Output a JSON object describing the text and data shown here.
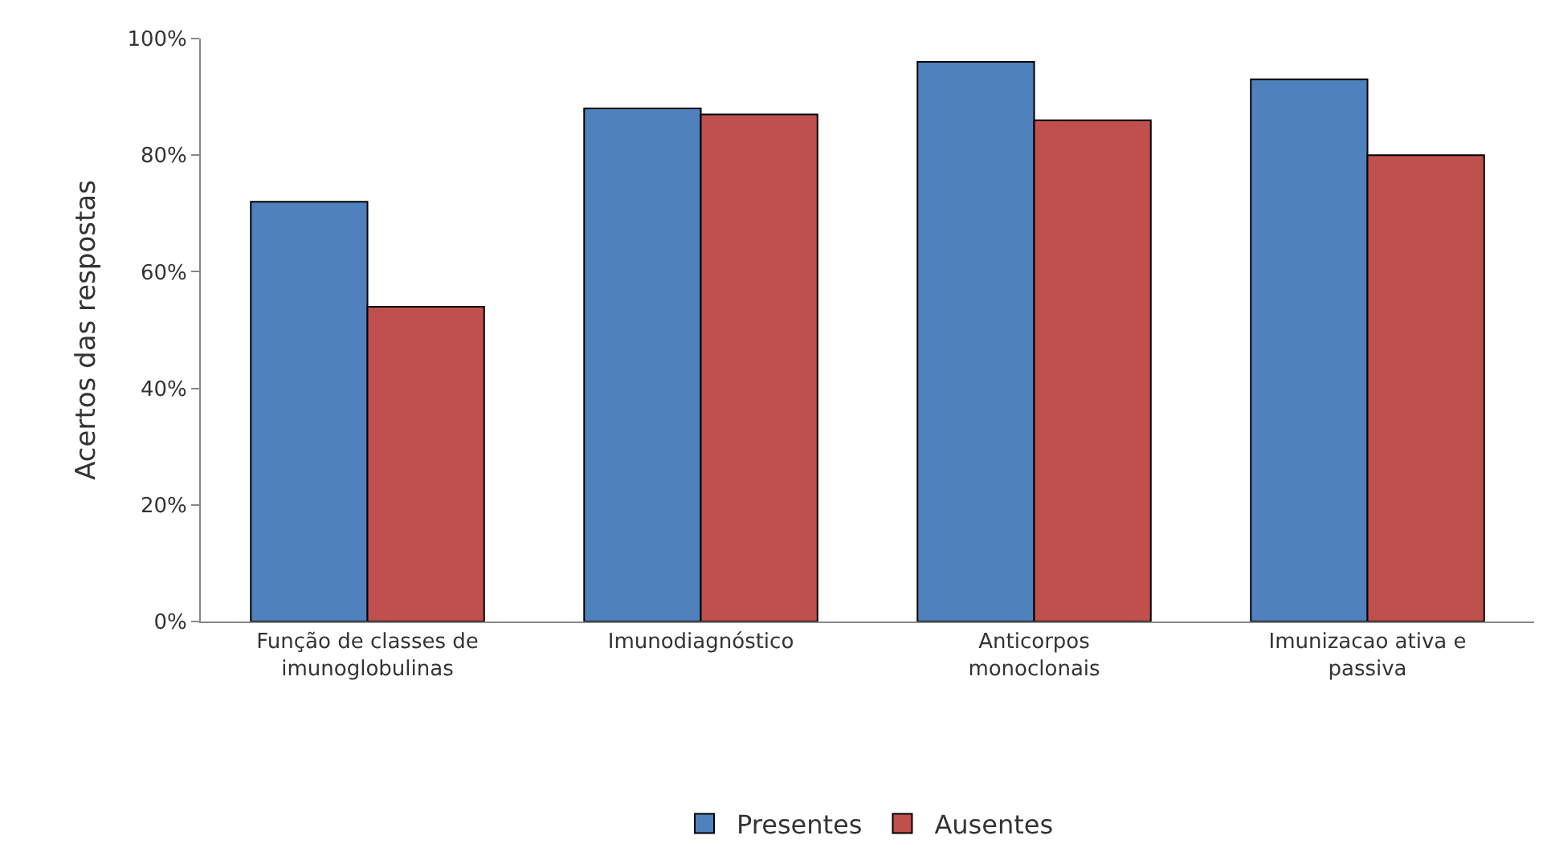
{
  "chart_data": {
    "type": "bar",
    "ylabel": "Acertos das respostas",
    "categories": [
      "Função de classes de\nimunoglobulinas",
      "Imunodiagnóstico",
      "Anticorpos\nmonoclonais",
      "Imunizacao ativa e\npassiva"
    ],
    "series": [
      {
        "name": "Presentes",
        "color": "#4f81bd",
        "values": [
          72,
          88,
          96,
          93
        ]
      },
      {
        "name": "Ausentes",
        "color": "#c0504d",
        "values": [
          54,
          87,
          86,
          80
        ]
      }
    ],
    "ylim": [
      0,
      100
    ],
    "yticks": [
      {
        "value": 0,
        "label": "0%"
      },
      {
        "value": 20,
        "label": "20%"
      },
      {
        "value": 40,
        "label": "40%"
      },
      {
        "value": 60,
        "label": "60%"
      },
      {
        "value": 80,
        "label": "80%"
      },
      {
        "value": 100,
        "label": "100%"
      }
    ],
    "legend": "bottom"
  }
}
